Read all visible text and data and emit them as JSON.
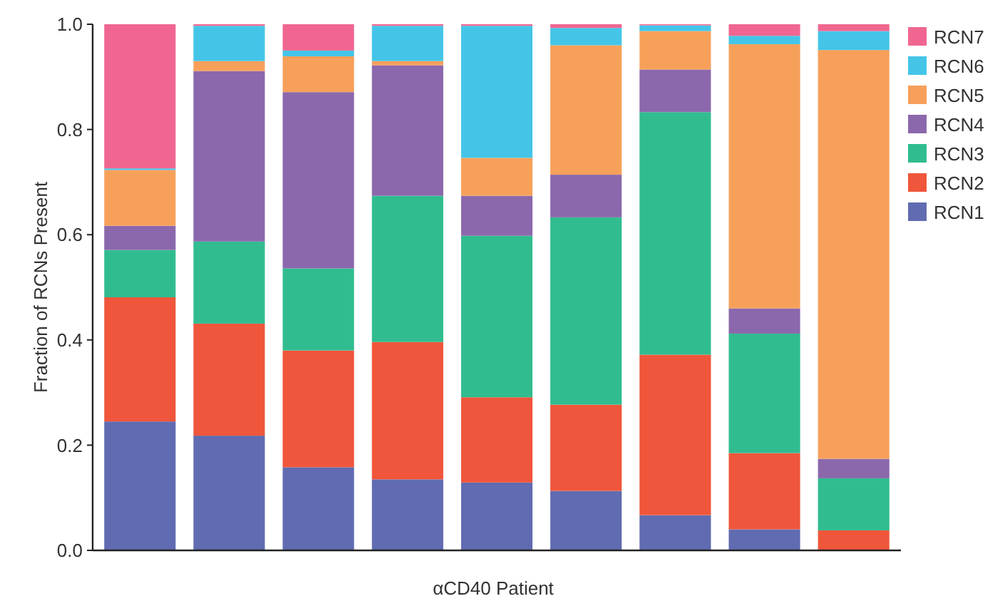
{
  "chart_data": {
    "type": "bar",
    "stacked": true,
    "xlabel": "αCD40 Patient",
    "ylabel": "Fraction of RCNs Present",
    "categories": [
      null,
      null,
      null,
      null,
      null,
      null,
      null,
      null,
      null
    ],
    "ylim": [
      0,
      1
    ],
    "yticks": [
      {
        "value": 0,
        "label": "0.0"
      },
      {
        "value": 0.2,
        "label": "0.2"
      },
      {
        "value": 0.4,
        "label": "0.4"
      },
      {
        "value": 0.6,
        "label": "0.6"
      },
      {
        "value": 0.8,
        "label": "0.8"
      },
      {
        "value": 1,
        "label": "1.0"
      }
    ],
    "grid": false,
    "legend": "top right",
    "series": [
      {
        "name": "RCN1",
        "color": "#606bb1",
        "values": [
          0.245,
          0.218,
          0.158,
          0.135,
          0.129,
          0.113,
          0.067,
          0.04,
          0
        ]
      },
      {
        "name": "RCN2",
        "color": "#ef563b",
        "values": [
          0.236,
          0.213,
          0.222,
          0.261,
          0.162,
          0.164,
          0.305,
          0.145,
          0.038
        ]
      },
      {
        "name": "RCN3",
        "color": "#31bc90",
        "values": [
          0.09,
          0.156,
          0.156,
          0.278,
          0.307,
          0.356,
          0.461,
          0.227,
          0.099
        ]
      },
      {
        "name": "RCN4",
        "color": "#8b68ac",
        "values": [
          0.046,
          0.324,
          0.335,
          0.248,
          0.076,
          0.081,
          0.081,
          0.048,
          0.037
        ]
      },
      {
        "name": "RCN5",
        "color": "#f7a05a",
        "values": [
          0.106,
          0.019,
          0.068,
          0.008,
          0.072,
          0.246,
          0.073,
          0.502,
          0.777
        ]
      },
      {
        "name": "RCN6",
        "color": "#44c5e8",
        "values": [
          0.003,
          0.067,
          0.011,
          0.067,
          0.251,
          0.033,
          0.011,
          0.016,
          0.036
        ]
      },
      {
        "name": "RCN7",
        "color": "#f06690",
        "values": [
          0.274,
          0.003,
          0.05,
          0.003,
          0.003,
          0.007,
          0.002,
          0.022,
          0.013
        ]
      }
    ]
  }
}
